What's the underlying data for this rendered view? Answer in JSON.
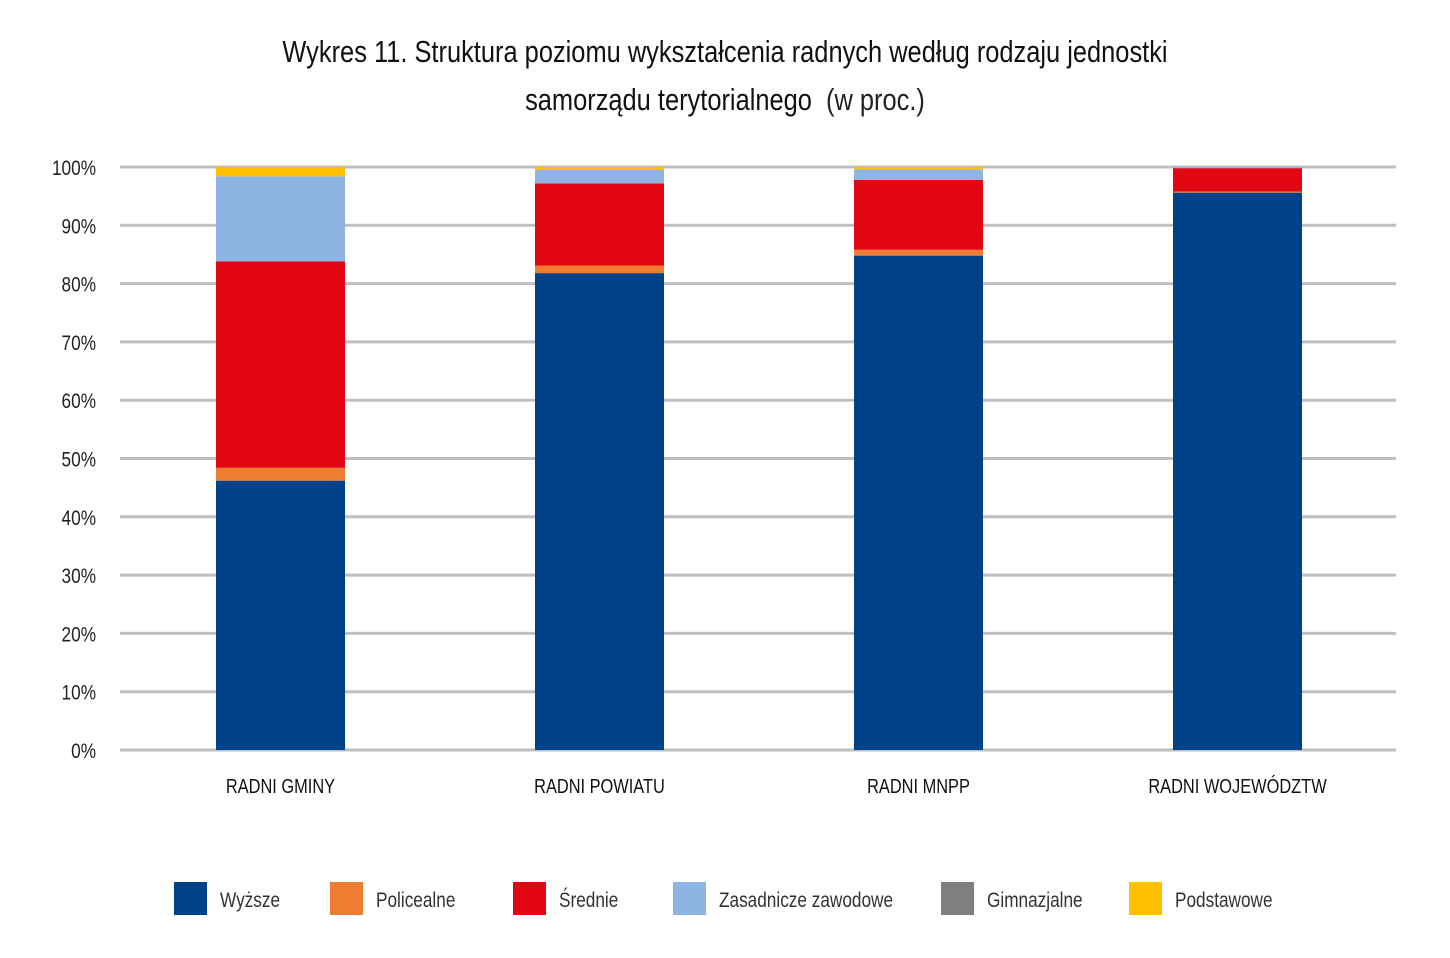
{
  "chart_data": {
    "type": "bar",
    "stacked": true,
    "title": "Wykres 11. Struktura poziomu wykształcenia radnych według rodzaju jednostki samorządu terytorialnego",
    "title_line1": "Wykres 11. Struktura poziomu wykształcenia radnych według rodzaju jednostki",
    "title_line2": "samorządu terytorialnego",
    "title_suffix": "(w proc.)",
    "xlabel": "",
    "ylabel": "",
    "ylim": [
      0,
      100
    ],
    "yticks": [
      "0%",
      "10%",
      "20%",
      "30%",
      "40%",
      "50%",
      "60%",
      "70%",
      "80%",
      "90%",
      "100%"
    ],
    "grid": true,
    "legend_position": "bottom",
    "categories": [
      "RADNI GMINY",
      "RADNI POWIATU",
      "RADNI MNPP",
      "RADNI WOJEWÓDZTW"
    ],
    "series": [
      {
        "name": "Wyższe",
        "color": "#004289",
        "values": [
          46.2,
          81.8,
          84.8,
          95.6
        ]
      },
      {
        "name": "Policealne",
        "color": "#ED7D31",
        "values": [
          2.2,
          1.3,
          1.0,
          0.2
        ]
      },
      {
        "name": "Średnie",
        "color": "#E30613",
        "values": [
          35.4,
          14.1,
          12.0,
          4.0
        ]
      },
      {
        "name": "Zasadnicze zawodowe",
        "color": "#8EB4E3",
        "values": [
          14.6,
          2.3,
          1.8,
          0.2
        ]
      },
      {
        "name": "Gimnazjalne",
        "color": "#7F7F7F",
        "values": [
          0,
          0,
          0,
          0
        ]
      },
      {
        "name": "Podstawowe",
        "color": "#FFC000",
        "values": [
          1.6,
          0.5,
          0.4,
          0
        ]
      }
    ]
  }
}
